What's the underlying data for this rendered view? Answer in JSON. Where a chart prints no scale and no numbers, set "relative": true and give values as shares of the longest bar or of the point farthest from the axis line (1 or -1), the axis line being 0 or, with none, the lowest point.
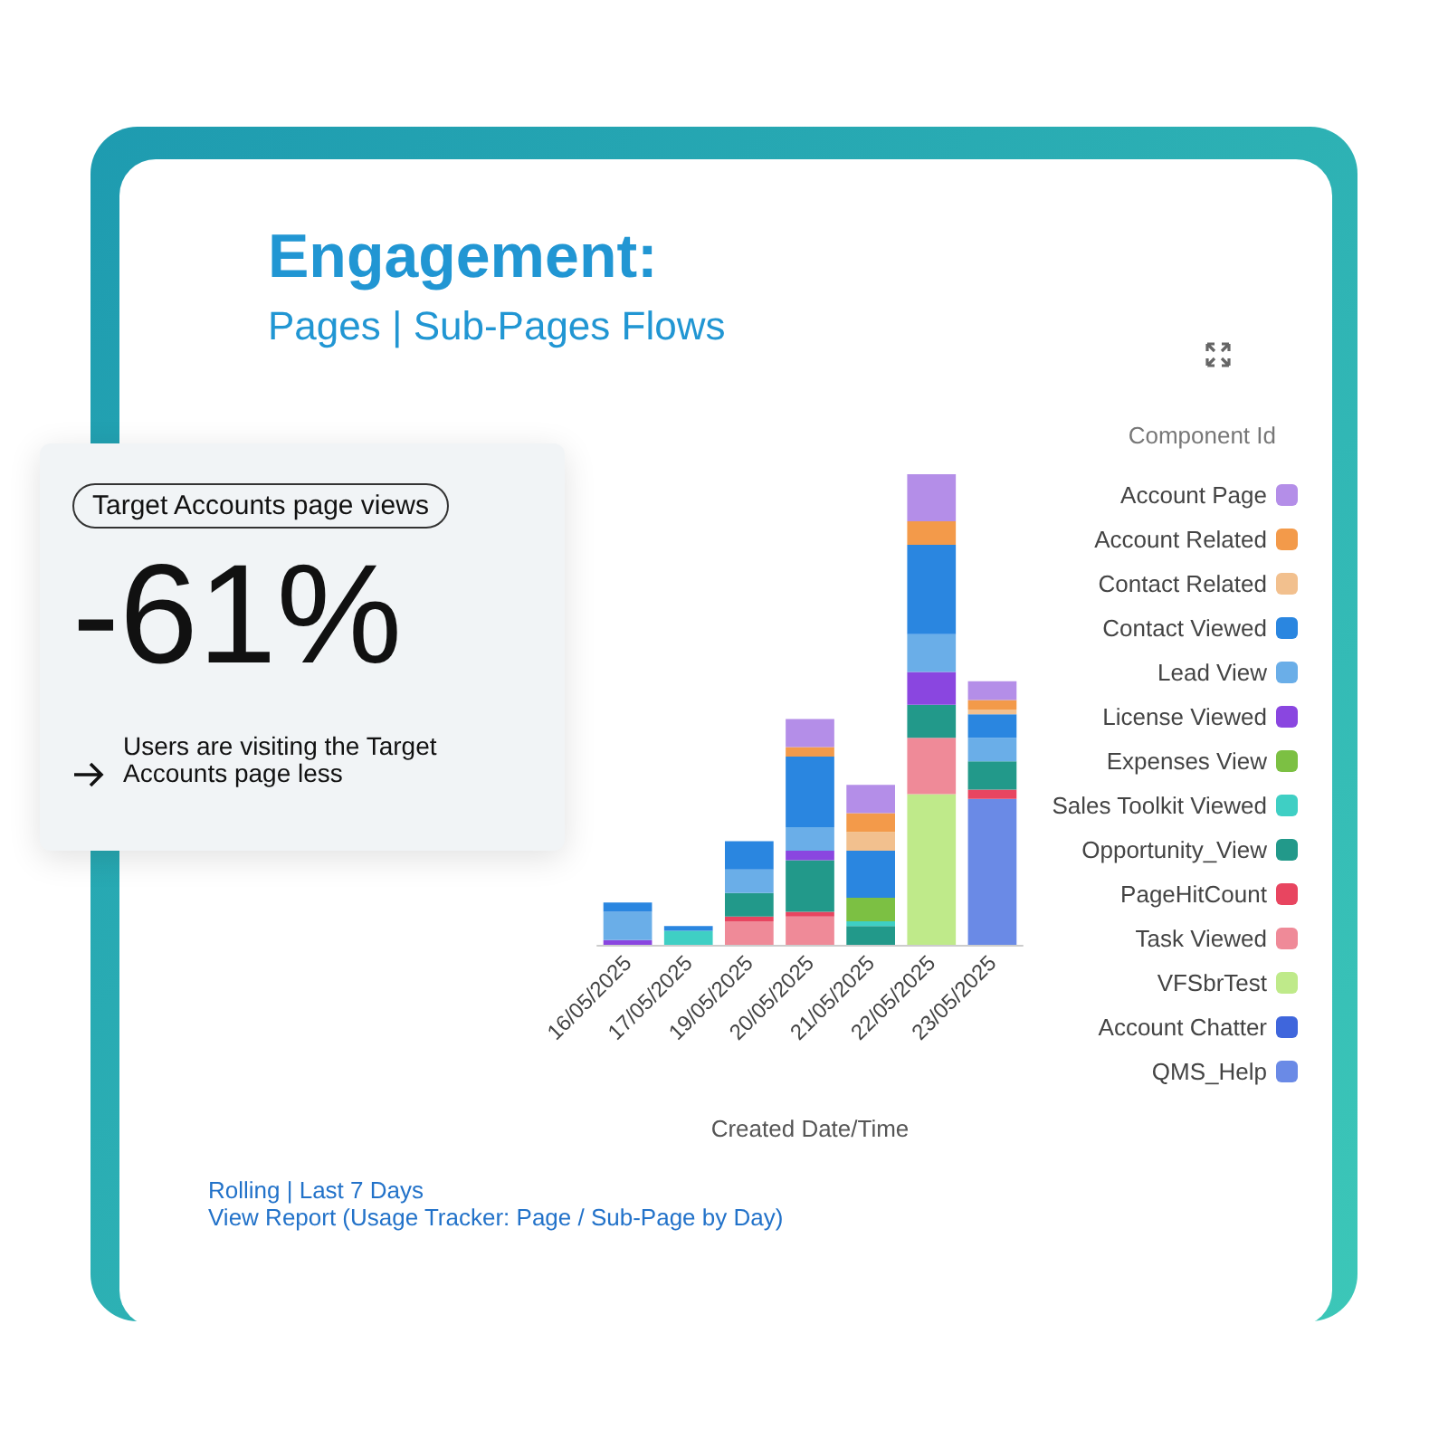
{
  "chart_data": {
    "type": "bar",
    "title": "Engagement:",
    "subtitle": "Pages | Sub-Pages Flows",
    "xlabel": "Created Date/Time",
    "legend_title": "Component Id",
    "relative": true,
    "stacked": true,
    "legend": "right",
    "categories": [
      "16/05/2025",
      "17/05/2025",
      "19/05/2025",
      "20/05/2025",
      "21/05/2025",
      "22/05/2025",
      "23/05/2025"
    ],
    "series": [
      {
        "name": "QMS_Help",
        "color": "#6a8ae6",
        "values": [
          null,
          null,
          null,
          null,
          null,
          null,
          0.31
        ]
      },
      {
        "name": "Account Chatter",
        "color": "#3f66dc",
        "values": [
          null,
          null,
          null,
          null,
          null,
          null,
          null
        ]
      },
      {
        "name": "VFSbrTest",
        "color": "#bfea8a",
        "values": [
          null,
          null,
          null,
          null,
          null,
          0.32,
          null
        ]
      },
      {
        "name": "Task Viewed",
        "color": "#ef8a98",
        "values": [
          null,
          null,
          0.05,
          0.06,
          null,
          0.12,
          null
        ]
      },
      {
        "name": "PageHitCount",
        "color": "#e84560",
        "values": [
          null,
          null,
          0.01,
          0.01,
          null,
          null,
          0.02
        ]
      },
      {
        "name": "Opportunity_View",
        "color": "#22998a",
        "values": [
          null,
          null,
          0.05,
          0.11,
          0.04,
          0.07,
          0.06
        ]
      },
      {
        "name": "Sales Toolkit Viewed",
        "color": "#3fcfc4",
        "values": [
          null,
          0.03,
          null,
          null,
          0.01,
          null,
          null
        ]
      },
      {
        "name": "Expenses View",
        "color": "#7cc043",
        "values": [
          null,
          null,
          null,
          null,
          0.05,
          null,
          null
        ]
      },
      {
        "name": "License Viewed",
        "color": "#8a46e0",
        "values": [
          0.01,
          null,
          null,
          0.02,
          null,
          0.07,
          null
        ]
      },
      {
        "name": "Lead View",
        "color": "#6aaee8",
        "values": [
          0.06,
          null,
          0.05,
          0.05,
          null,
          0.08,
          0.05
        ]
      },
      {
        "name": "Contact Viewed",
        "color": "#2a86e0",
        "values": [
          0.02,
          0.01,
          0.06,
          0.15,
          0.1,
          0.19,
          0.05
        ]
      },
      {
        "name": "Contact Related",
        "color": "#f2c08e",
        "values": [
          null,
          null,
          null,
          null,
          0.04,
          null,
          0.01
        ]
      },
      {
        "name": "Account Related",
        "color": "#f39a4a",
        "values": [
          null,
          null,
          null,
          0.02,
          0.04,
          0.05,
          0.02
        ]
      },
      {
        "name": "Account Page",
        "color": "#b48ee8",
        "values": [
          null,
          null,
          null,
          0.06,
          0.06,
          0.1,
          0.04
        ]
      }
    ],
    "annotations": [
      "Target Accounts page views",
      "-61%",
      "Users are visiting the Target Accounts page less",
      "Rolling | Last 7 Days",
      "View Report (Usage Tracker: Page / Sub-Page by Day)"
    ]
  }
}
